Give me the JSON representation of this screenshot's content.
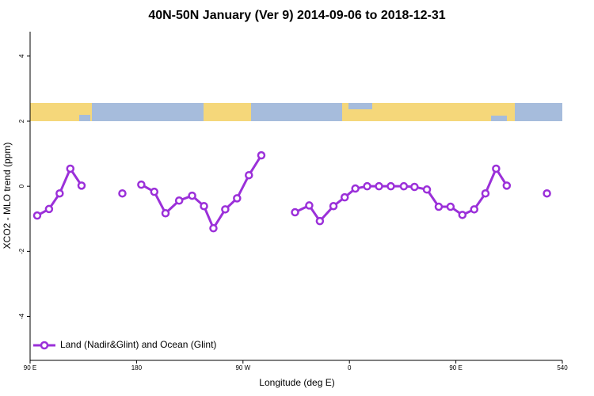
{
  "chart_data": {
    "type": "line",
    "title": "40N-50N January (Ver 9)   2014-09-06 to 2018-12-31",
    "xlabel": "Longitude (deg E)",
    "ylabel": "XCO2 - MLO trend (ppm)",
    "xlim": [
      90,
      540
    ],
    "ylim": [
      -5.35,
      4.75
    ],
    "xticks": [
      {
        "value": 90,
        "label": "90 E"
      },
      180,
      {
        "value": 270,
        "label": "90 W"
      },
      {
        "value": 360,
        "label": "0"
      },
      {
        "value": 450,
        "label": "90 E"
      },
      540
    ],
    "yticks": [
      -4,
      -2,
      0,
      2,
      4
    ],
    "legend": "bottom-left",
    "x": [
      96,
      106,
      115,
      124,
      133.5,
      null,
      168,
      null,
      184,
      195,
      204.5,
      216,
      227,
      237,
      245,
      255,
      265,
      275,
      285.5,
      null,
      314,
      326,
      335,
      346.5,
      356,
      365,
      375,
      385,
      395,
      406,
      415,
      425.5,
      435.5,
      445.5,
      455.5,
      465.5,
      475,
      484,
      493,
      null,
      527
    ],
    "series": [
      {
        "name": "Land (Nadir&Glint) and Ocean (Glint)",
        "color": "#9b30d9",
        "values": [
          -0.9,
          -0.7,
          -0.22,
          0.54,
          0.02,
          null,
          -0.22,
          null,
          0.05,
          -0.17,
          -0.83,
          -0.44,
          -0.29,
          -0.61,
          -1.29,
          -0.71,
          -0.37,
          0.34,
          0.95,
          null,
          -0.8,
          -0.59,
          -1.07,
          -0.61,
          -0.34,
          -0.07,
          0,
          0,
          0,
          0,
          -0.02,
          -0.1,
          -0.63,
          -0.63,
          -0.88,
          -0.71,
          -0.22,
          0.54,
          0.02,
          null,
          -0.22
        ]
      }
    ]
  }
}
